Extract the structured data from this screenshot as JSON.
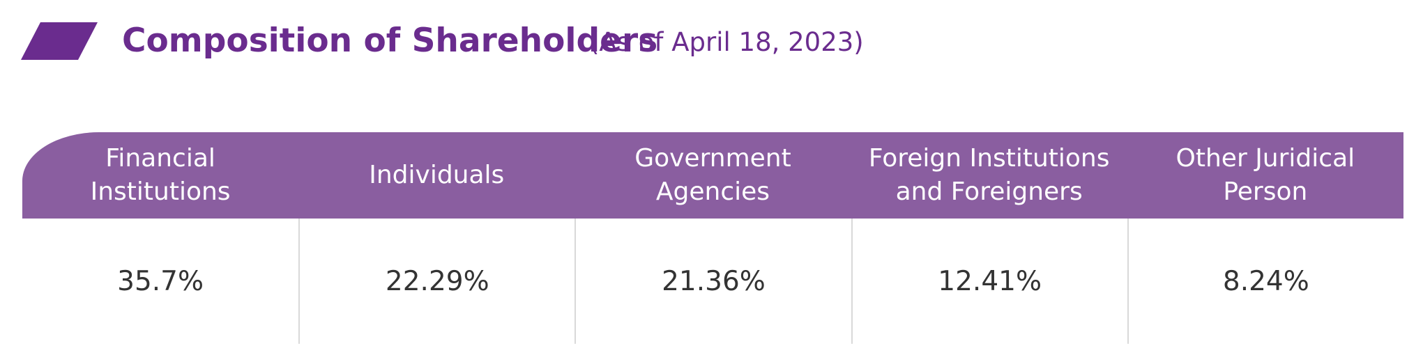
{
  "title": "Composition of Shareholders",
  "subtitle": "(As of April 18, 2023)",
  "colors": {
    "accent": "#6a2c8e",
    "header_bg": "#8a5ea0",
    "divider": "#d9d9d9",
    "value_text": "#333333"
  },
  "title_icon": "parallelogram-icon",
  "table": {
    "headers": [
      "Financial\nInstitutions",
      "Individuals",
      "Government\nAgencies",
      "Foreign Institutions\nand Foreigners",
      "Other Juridical\nPerson"
    ],
    "values": [
      "35.7%",
      "22.29%",
      "21.36%",
      "12.41%",
      "8.24%"
    ]
  }
}
